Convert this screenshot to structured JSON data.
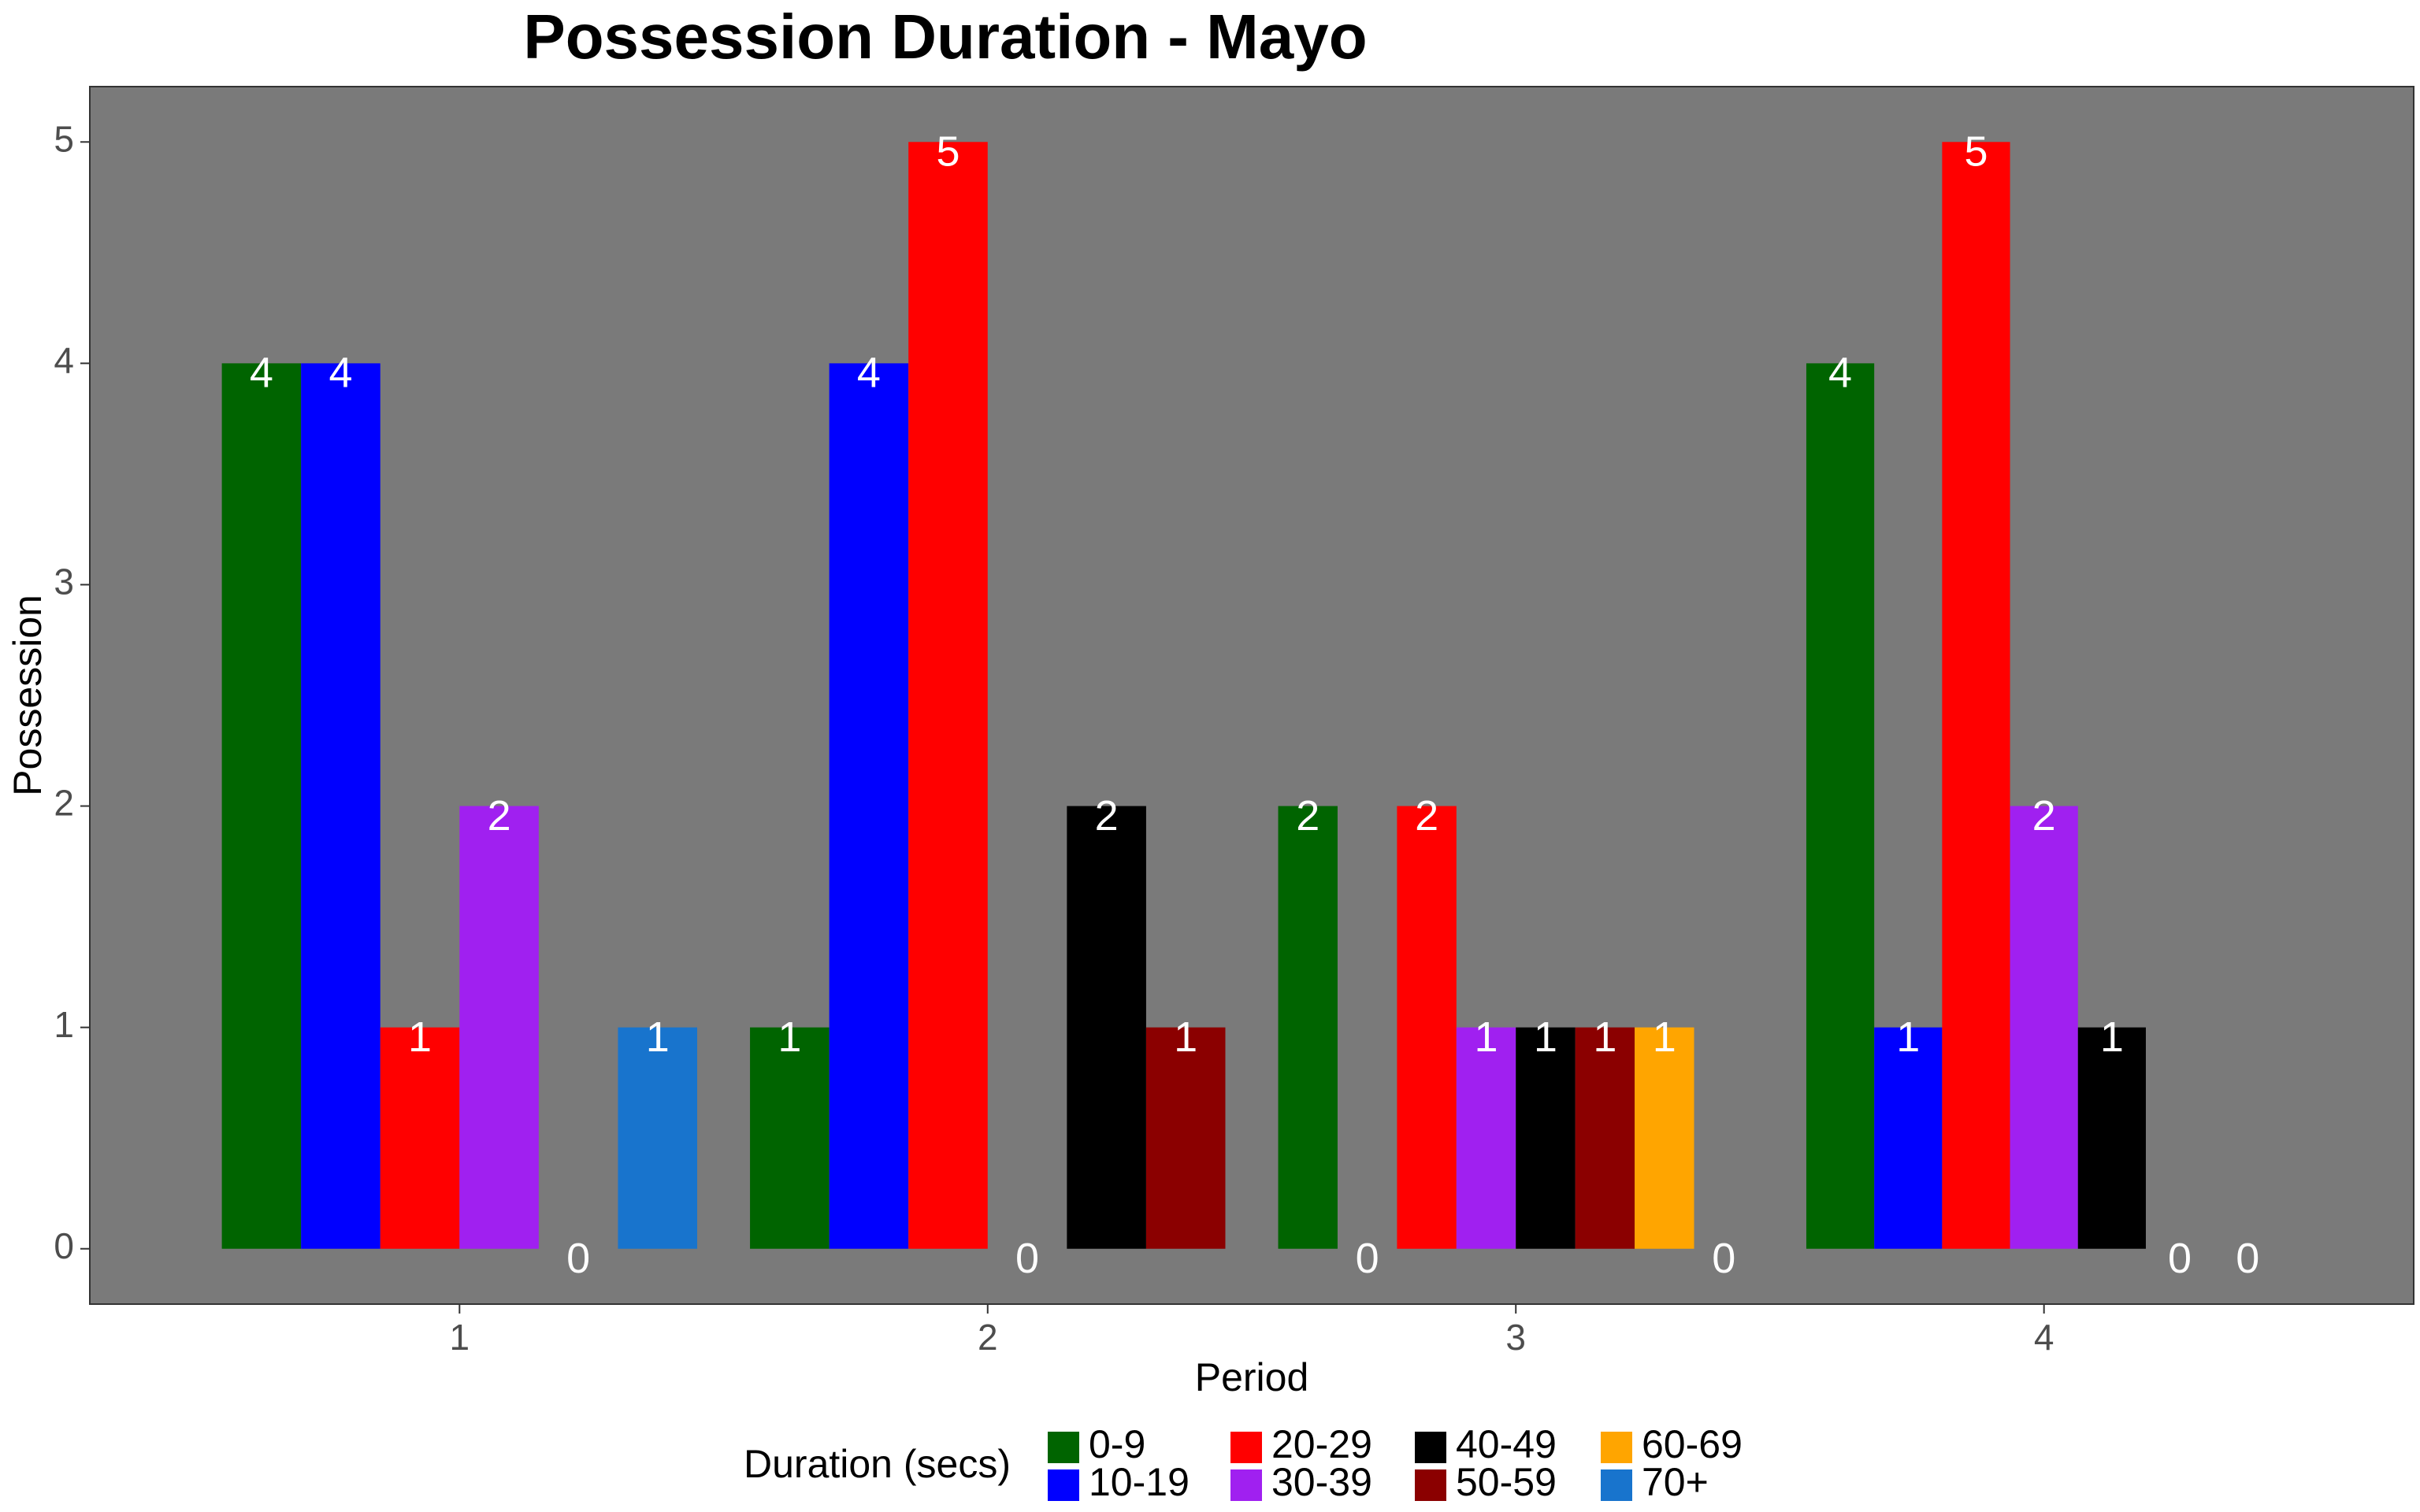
{
  "chart_data": {
    "type": "bar",
    "title": "Possession Duration - Mayo",
    "xlabel": "Period",
    "ylabel": "Possession",
    "categories": [
      "1",
      "2",
      "3",
      "4"
    ],
    "ylim": [
      -0.25,
      5.25
    ],
    "yticks": [
      0,
      1,
      2,
      3,
      4,
      5
    ],
    "grid": false,
    "panel_background": "#7a7a7a",
    "legend": {
      "title": "Duration (secs)",
      "position": "bottom"
    },
    "series": [
      {
        "name": "0-9",
        "color": "#006400"
      },
      {
        "name": "10-19",
        "color": "#0000ff"
      },
      {
        "name": "20-29",
        "color": "#ff0000"
      },
      {
        "name": "30-39",
        "color": "#a020f0"
      },
      {
        "name": "40-49",
        "color": "#000000"
      },
      {
        "name": "50-59",
        "color": "#8b0000"
      },
      {
        "name": "60-69",
        "color": "#ffa500"
      },
      {
        "name": "70+",
        "color": "#1874cd"
      }
    ],
    "bars": [
      {
        "period": "1",
        "series": "0-9",
        "value": 4
      },
      {
        "period": "1",
        "series": "10-19",
        "value": 4
      },
      {
        "period": "1",
        "series": "20-29",
        "value": 1
      },
      {
        "period": "1",
        "series": "30-39",
        "value": 2
      },
      {
        "period": "1",
        "series": "40-49",
        "value": 0
      },
      {
        "period": "1",
        "series": "70+",
        "value": 1
      },
      {
        "period": "2",
        "series": "0-9",
        "value": 1
      },
      {
        "period": "2",
        "series": "10-19",
        "value": 4
      },
      {
        "period": "2",
        "series": "20-29",
        "value": 5
      },
      {
        "period": "2",
        "series": "30-39",
        "value": 0
      },
      {
        "period": "2",
        "series": "40-49",
        "value": 2
      },
      {
        "period": "2",
        "series": "50-59",
        "value": 1
      },
      {
        "period": "3",
        "series": "0-9",
        "value": 2
      },
      {
        "period": "3",
        "series": "10-19",
        "value": 0
      },
      {
        "period": "3",
        "series": "20-29",
        "value": 2
      },
      {
        "period": "3",
        "series": "30-39",
        "value": 1
      },
      {
        "period": "3",
        "series": "40-49",
        "value": 1
      },
      {
        "period": "3",
        "series": "50-59",
        "value": 1
      },
      {
        "period": "3",
        "series": "60-69",
        "value": 1
      },
      {
        "period": "3",
        "series": "70+",
        "value": 0
      },
      {
        "period": "4",
        "series": "0-9",
        "value": 4
      },
      {
        "period": "4",
        "series": "10-19",
        "value": 1
      },
      {
        "period": "4",
        "series": "20-29",
        "value": 5
      },
      {
        "period": "4",
        "series": "30-39",
        "value": 2
      },
      {
        "period": "4",
        "series": "40-49",
        "value": 1
      },
      {
        "period": "4",
        "series": "50-59",
        "value": 0
      },
      {
        "period": "4",
        "series": "60-69",
        "value": 0
      }
    ]
  }
}
